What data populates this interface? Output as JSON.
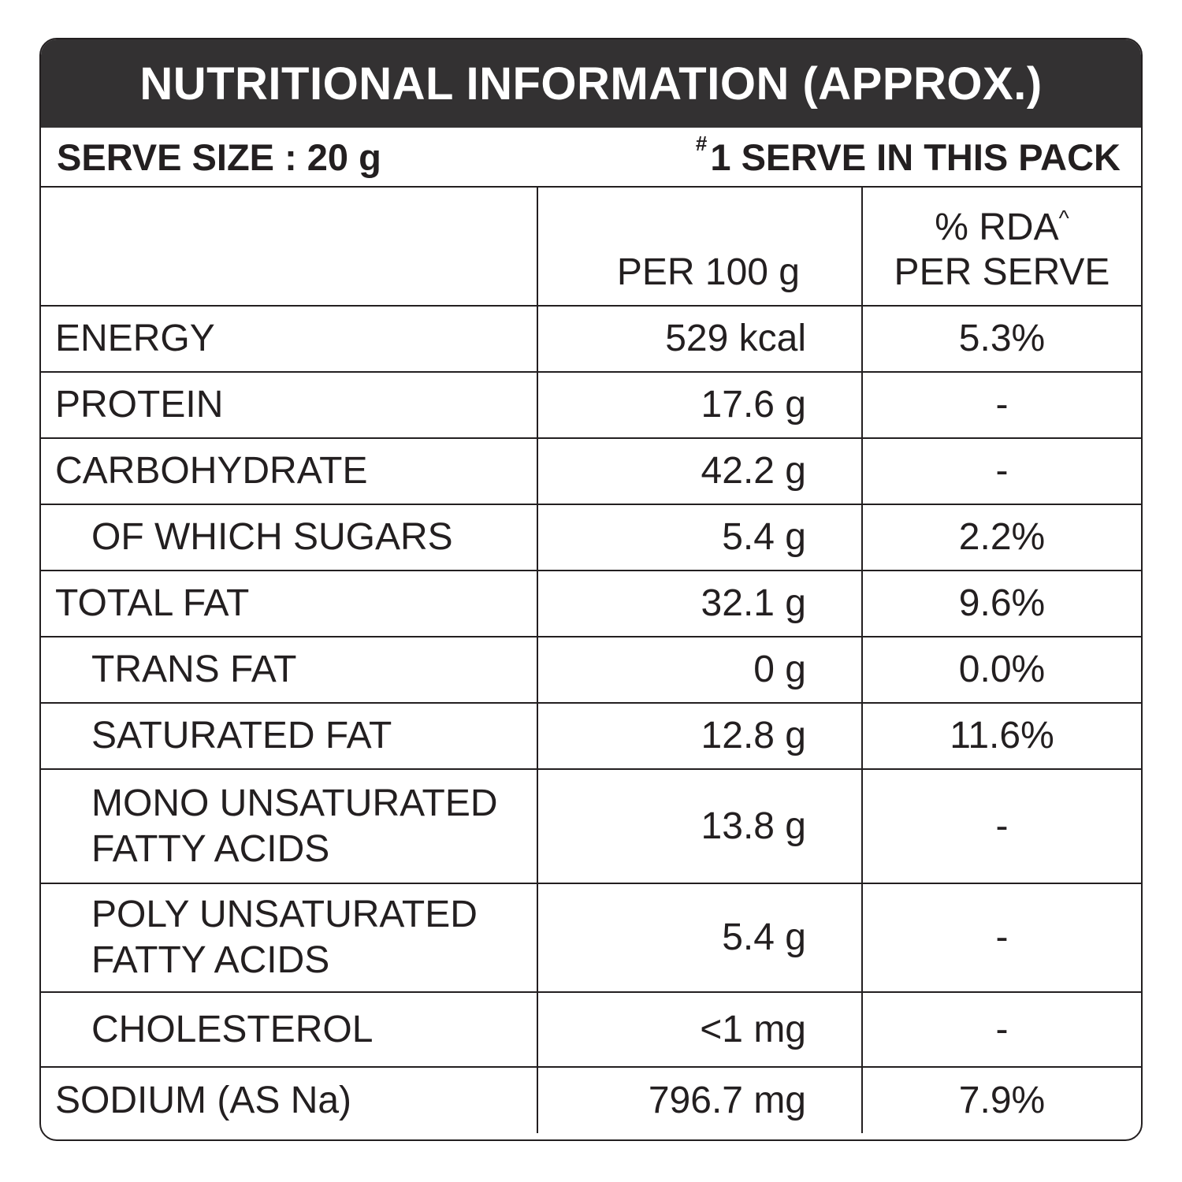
{
  "panel": {
    "title": "NUTRITIONAL INFORMATION (APPROX.)",
    "serve_size": "SERVE SIZE : 20 g",
    "serve_pack_mark": "#",
    "serve_pack": "1 SERVE IN THIS PACK"
  },
  "table": {
    "header": {
      "per_100": "PER 100 g",
      "rda_line1": "% RDA",
      "rda_mark": "^",
      "rda_line2": "PER SERVE"
    },
    "rows": [
      {
        "nutrient": "ENERGY",
        "per100": "529 kcal",
        "rda": "5.3%"
      },
      {
        "nutrient": "PROTEIN",
        "per100": "17.6 g",
        "rda": "-"
      },
      {
        "nutrient": "CARBOHYDRATE",
        "per100": "42.2 g",
        "rda": "-"
      },
      {
        "nutrient": "OF WHICH SUGARS",
        "per100": "5.4 g",
        "rda": "2.2%"
      },
      {
        "nutrient": "TOTAL FAT",
        "per100": "32.1 g",
        "rda": "9.6%"
      },
      {
        "nutrient": "TRANS FAT",
        "per100": "0 g",
        "rda": "0.0%"
      },
      {
        "nutrient": "SATURATED FAT",
        "per100": "12.8 g",
        "rda": "11.6%"
      },
      {
        "nutrient_line1": "MONO UNSATURATED",
        "nutrient_line2": "FATTY ACIDS",
        "per100": "13.8 g",
        "rda": "-"
      },
      {
        "nutrient_line1": "POLY UNSATURATED",
        "nutrient_line2": "FATTY ACIDS",
        "per100": "5.4 g",
        "rda": "-"
      },
      {
        "nutrient": "CHOLESTEROL",
        "per100": "<1 mg",
        "rda": "-"
      },
      {
        "nutrient": "SODIUM (AS Na)",
        "per100": "796.7 mg",
        "rda": "7.9%"
      }
    ]
  }
}
